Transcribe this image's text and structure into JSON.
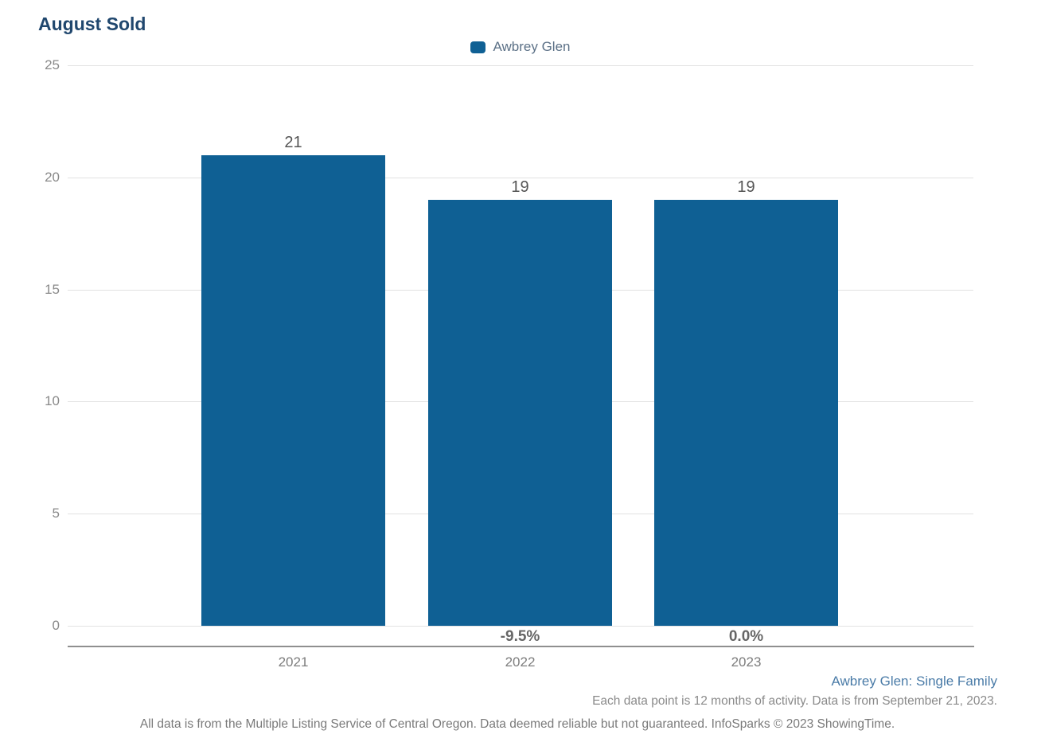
{
  "chart": {
    "title": "August Sold",
    "legend": [
      {
        "label": "Awbrey Glen",
        "color": "#0f6094"
      }
    ]
  },
  "chart_data": {
    "type": "bar",
    "title": "August Sold",
    "categories": [
      "2021",
      "2022",
      "2023"
    ],
    "series": [
      {
        "name": "Awbrey Glen",
        "values": [
          21,
          19,
          19
        ]
      }
    ],
    "bar_labels": [
      "21",
      "19",
      "19"
    ],
    "pct_change_labels": [
      "",
      "-9.5%",
      "0.0%"
    ],
    "xlabel": "",
    "ylabel": "",
    "ylim": [
      0,
      25
    ],
    "yticks": [
      0,
      5,
      10,
      15,
      20,
      25
    ],
    "grid": true,
    "legend_position": "top-center",
    "bar_color": "#0f6094"
  },
  "footer": {
    "series_descriptor": "Awbrey Glen: Single Family",
    "data_note": "Each data point is 12 months of activity. Data is from September 21, 2023.",
    "disclaimer": "All data is from the Multiple Listing Service of Central Oregon. Data deemed reliable but not guaranteed. InfoSparks © 2023 ShowingTime."
  },
  "colors": {
    "accent_bar": "#0f6094",
    "title_text": "#20476e",
    "legend_text": "#5b7086",
    "series_descriptor_text": "#4b7ca8",
    "gridline": "#e2e2e2",
    "axis_line": "#8f8f8f"
  }
}
